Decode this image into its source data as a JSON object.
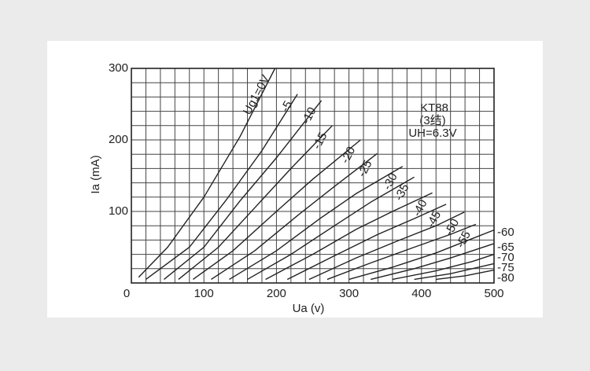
{
  "chart_data": {
    "type": "line",
    "xlabel": "Ua (v)",
    "ylabel": "Ia  (mA)",
    "annotations": [
      "KT88",
      "(3结)",
      "UH=6.3V"
    ],
    "xlim": [
      0,
      500
    ],
    "ylim": [
      0,
      300
    ],
    "xticks": [
      0,
      100,
      200,
      300,
      400,
      500
    ],
    "yticks": [
      100,
      200,
      300
    ],
    "xgrid": [
      0,
      20,
      40,
      60,
      80,
      100,
      120,
      140,
      160,
      180,
      200,
      220,
      240,
      260,
      280,
      300,
      320,
      340,
      360,
      380,
      400,
      420,
      440,
      460,
      480,
      500
    ],
    "ygrid": [
      0,
      20,
      40,
      60,
      80,
      100,
      120,
      140,
      160,
      180,
      200,
      220,
      240,
      260,
      280,
      300
    ],
    "color": "#222222",
    "series": [
      {
        "name": "Ug1=0V",
        "x": [
          10,
          50,
          100,
          150,
          198
        ],
        "values": [
          8,
          50,
          120,
          205,
          300
        ]
      },
      {
        "name": "-5",
        "x": [
          20,
          80,
          130,
          180,
          229
        ],
        "values": [
          5,
          50,
          115,
          185,
          264
        ]
      },
      {
        "name": "-10",
        "x": [
          45,
          100,
          150,
          200,
          262
        ],
        "values": [
          5,
          50,
          115,
          175,
          255
        ]
      },
      {
        "name": "-15",
        "x": [
          65,
          120,
          170,
          220,
          277
        ],
        "values": [
          5,
          50,
          105,
          160,
          220
        ]
      },
      {
        "name": "-20",
        "x": [
          85,
          140,
          200,
          250,
          316
        ],
        "values": [
          5,
          45,
          100,
          145,
          200
        ]
      },
      {
        "name": "-25",
        "x": [
          110,
          170,
          230,
          280,
          339
        ],
        "values": [
          5,
          45,
          95,
          135,
          181
        ]
      },
      {
        "name": "-30",
        "x": [
          135,
          200,
          260,
          310,
          374
        ],
        "values": [
          5,
          45,
          90,
          125,
          163
        ]
      },
      {
        "name": "-35",
        "x": [
          160,
          220,
          280,
          330,
          390
        ],
        "values": [
          5,
          40,
          80,
          113,
          148
        ]
      },
      {
        "name": "-40",
        "x": [
          185,
          250,
          310,
          360,
          415
        ],
        "values": [
          5,
          40,
          75,
          100,
          126
        ]
      },
      {
        "name": "-45",
        "x": [
          215,
          280,
          340,
          390,
          434
        ],
        "values": [
          5,
          38,
          68,
          90,
          110
        ]
      },
      {
        "name": "-50",
        "x": [
          245,
          310,
          370,
          420,
          459
        ],
        "values": [
          5,
          35,
          60,
          80,
          99
        ]
      },
      {
        "name": "-55",
        "x": [
          270,
          330,
          390,
          440,
          475
        ],
        "values": [
          5,
          28,
          50,
          68,
          82
        ]
      },
      {
        "name": "-60",
        "x": [
          300,
          360,
          420,
          470,
          500
        ],
        "values": [
          5,
          22,
          42,
          62,
          74
        ]
      },
      {
        "name": "-65",
        "x": [
          330,
          390,
          440,
          500
        ],
        "values": [
          5,
          20,
          35,
          55
        ]
      },
      {
        "name": "-70",
        "x": [
          360,
          420,
          470,
          500
        ],
        "values": [
          5,
          17,
          30,
          40
        ]
      },
      {
        "name": "-75",
        "x": [
          390,
          440,
          500
        ],
        "values": [
          5,
          13,
          27
        ]
      },
      {
        "name": "-80",
        "x": [
          420,
          460,
          500
        ],
        "values": [
          5,
          10,
          18
        ]
      }
    ]
  }
}
